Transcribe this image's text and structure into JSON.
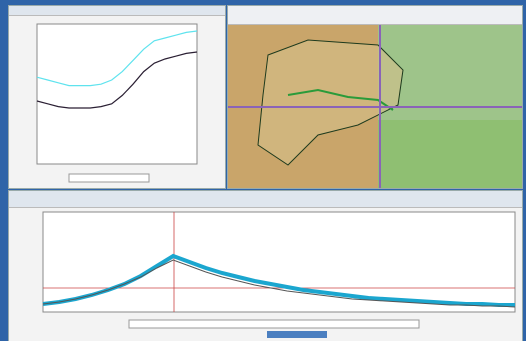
{
  "top_chart": {
    "type": "line",
    "ylim": [
      0,
      100
    ],
    "series": [
      {
        "color": "#5fe3ee",
        "values": [
          62,
          60,
          58,
          56,
          56,
          56,
          57,
          60,
          66,
          74,
          82,
          88,
          90,
          92,
          94,
          95
        ]
      },
      {
        "color": "#2a1f33",
        "values": [
          45,
          43,
          41,
          40,
          40,
          40,
          41,
          43,
          49,
          57,
          66,
          72,
          75,
          77,
          79,
          80
        ]
      }
    ]
  },
  "bottom_chart": {
    "type": "line",
    "ylim": [
      0,
      100
    ],
    "series": [
      {
        "color": "#1ba6cf",
        "values": [
          8,
          10,
          13,
          17,
          22,
          28,
          36,
          46,
          56,
          50,
          44,
          39,
          35,
          31,
          28,
          25,
          22,
          20,
          18,
          16,
          14,
          13,
          12,
          11,
          10,
          9,
          8,
          8,
          7,
          7
        ]
      },
      {
        "color": "#555555",
        "values": [
          8,
          10,
          13,
          17,
          22,
          28,
          35,
          44,
          52,
          46,
          40,
          35,
          31,
          27,
          24,
          21,
          19,
          17,
          15,
          13,
          12,
          11,
          10,
          9,
          8,
          7,
          7,
          6,
          6,
          5
        ]
      }
    ]
  }
}
